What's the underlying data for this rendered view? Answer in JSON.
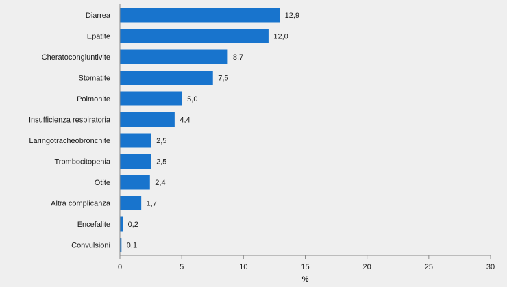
{
  "chart_data": {
    "type": "bar",
    "orientation": "horizontal",
    "categories": [
      "Diarrea",
      "Epatite",
      "Cheratocongiuntivite",
      "Stomatite",
      "Polmonite",
      "Insufficienza respiratoria",
      "Laringotracheobronchite",
      "Trombocitopenia",
      "Otite",
      "Altra complicanza",
      "Encefalite",
      "Convulsioni"
    ],
    "values": [
      12.9,
      12.0,
      8.7,
      7.5,
      5.0,
      4.4,
      2.5,
      2.5,
      2.4,
      1.7,
      0.2,
      0.1
    ],
    "value_labels": [
      "12,9",
      "12,0",
      "8,7",
      "7,5",
      "5,0",
      "4,4",
      "2,5",
      "2,5",
      "2,4",
      "1,7",
      "0,2",
      "0,1"
    ],
    "xlabel": "%",
    "ylabel": "",
    "xlim": [
      0,
      30
    ],
    "xticks": [
      0,
      5,
      10,
      15,
      20,
      25,
      30
    ],
    "grid": false,
    "legend": "none",
    "bar_color": "#1874cd"
  }
}
